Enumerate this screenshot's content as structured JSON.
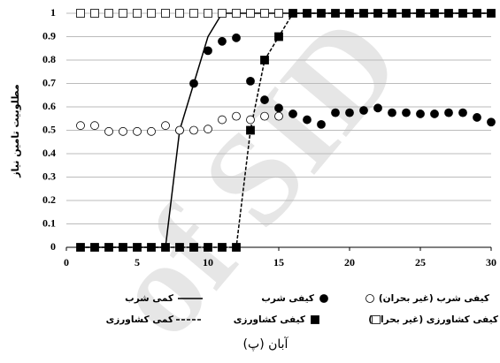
{
  "chart_data": {
    "type": "scatter-line",
    "y_label": "مطلوبیت تامین نیاز",
    "caption": "(پ) آبان",
    "watermark": "of SID",
    "xlim": [
      0,
      30
    ],
    "xticks": [
      0,
      5,
      10,
      15,
      20,
      25,
      30
    ],
    "ylim": [
      0,
      1
    ],
    "yticks": [
      0,
      0.1,
      0.2,
      0.3,
      0.4,
      0.5,
      0.6,
      0.7,
      0.8,
      0.9,
      1
    ],
    "grid": true,
    "series": [
      {
        "name": "کمی شرب",
        "color": "#000000",
        "style": "line",
        "x": [
          1,
          2,
          3,
          4,
          5,
          6,
          7,
          8,
          9,
          10,
          11,
          12,
          13,
          14,
          15,
          16,
          17,
          18,
          19,
          20,
          21,
          22,
          23,
          24,
          25,
          26,
          27,
          28,
          29,
          30
        ],
        "values": [
          0,
          0,
          0,
          0,
          0,
          0,
          0,
          0.5,
          0.7,
          0.9,
          1,
          1,
          1,
          1,
          1,
          1,
          1,
          1,
          1,
          1,
          1,
          1,
          1,
          1,
          1,
          1,
          1,
          1,
          1,
          1
        ]
      },
      {
        "name": "کمی کشاورزی",
        "color": "#000000",
        "style": "dashed",
        "x": [
          1,
          2,
          3,
          4,
          5,
          6,
          7,
          8,
          9,
          10,
          11,
          12,
          13,
          14,
          15,
          16,
          17,
          18,
          19,
          20,
          21,
          22,
          23,
          24,
          25,
          26,
          27,
          28,
          29,
          30
        ],
        "values": [
          0,
          0,
          0,
          0,
          0,
          0,
          0,
          0,
          0,
          0,
          0,
          0,
          0.5,
          0.8,
          0.9,
          1,
          1,
          1,
          1,
          1,
          1,
          1,
          1,
          1,
          1,
          1,
          1,
          1,
          1,
          1
        ]
      },
      {
        "name": "کیفی شرب",
        "color": "#000000",
        "style": "circle-filled",
        "x": [
          8,
          9,
          10,
          11,
          12,
          13,
          14,
          15,
          16,
          17,
          18,
          19,
          20,
          21,
          22,
          23,
          24,
          25,
          26,
          27,
          28,
          29,
          30
        ],
        "values": [
          0.5,
          0.7,
          0.84,
          0.88,
          0.895,
          0.71,
          0.63,
          0.595,
          0.57,
          0.545,
          0.525,
          0.575,
          0.575,
          0.585,
          0.595,
          0.575,
          0.575,
          0.57,
          0.57,
          0.575,
          0.575,
          0.555,
          0.535
        ]
      },
      {
        "name": "کیفی کشاورزی",
        "color": "#000000",
        "style": "square-filled",
        "x": [
          1,
          2,
          3,
          4,
          5,
          6,
          7,
          8,
          9,
          10,
          11,
          12,
          13,
          14,
          15,
          16,
          17,
          18,
          19,
          20,
          21,
          22,
          23,
          24,
          25,
          26,
          27,
          28,
          29,
          30
        ],
        "values": [
          0,
          0,
          0,
          0,
          0,
          0,
          0,
          0,
          0,
          0,
          0,
          0,
          0.5,
          0.8,
          0.9,
          1,
          1,
          1,
          1,
          1,
          1,
          1,
          1,
          1,
          1,
          1,
          1,
          1,
          1,
          1
        ]
      },
      {
        "name": "کیفی شرب (غیر بحران)",
        "color": "#000000",
        "style": "circle-open",
        "x": [
          1,
          2,
          3,
          4,
          5,
          6,
          7,
          8,
          9,
          10,
          11,
          12,
          13,
          14,
          15
        ],
        "values": [
          0.52,
          0.52,
          0.495,
          0.495,
          0.495,
          0.495,
          0.52,
          0.5,
          0.5,
          0.505,
          0.545,
          0.56,
          0.545,
          0.56,
          0.56
        ]
      },
      {
        "name": "کیفی کشاورزی (غیر بحران)",
        "color": "#000000",
        "style": "square-open",
        "x": [
          1,
          2,
          3,
          4,
          5,
          6,
          7,
          8,
          9,
          10,
          11,
          12,
          13,
          14,
          15
        ],
        "values": [
          1,
          1,
          1,
          1,
          1,
          1,
          1,
          1,
          1,
          1,
          1,
          1,
          1,
          1,
          1
        ]
      }
    ]
  }
}
